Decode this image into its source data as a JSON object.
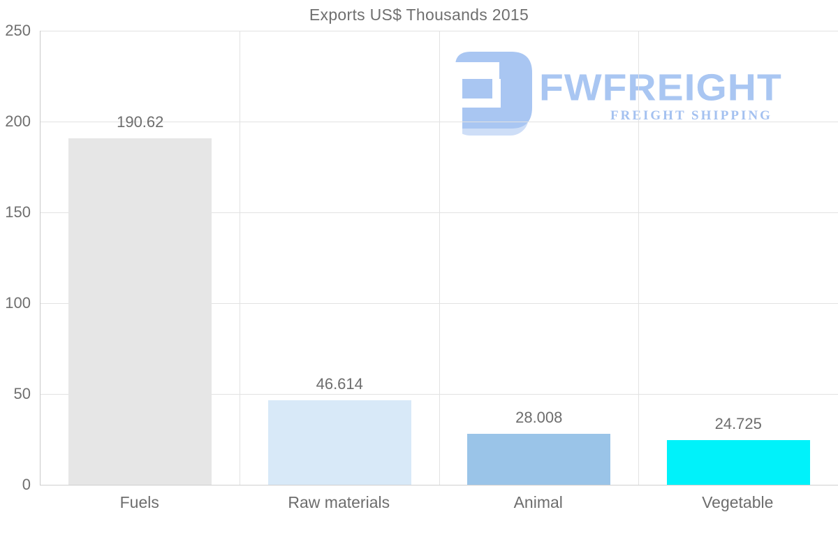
{
  "chart_data": {
    "type": "bar",
    "title": "Exports US$ Thousands 2015",
    "categories": [
      "Fuels",
      "Raw materials",
      "Animal",
      "Vegetable"
    ],
    "values": [
      190.62,
      46.614,
      28.008,
      24.725
    ],
    "value_labels": [
      "190.62",
      "46.614",
      "28.008",
      "24.725"
    ],
    "bar_colors": [
      "#e6e6e6",
      "#d8e9f8",
      "#9ac4e8",
      "#00f2fa"
    ],
    "ylim": [
      0,
      250
    ],
    "yticks": [
      0,
      50,
      100,
      150,
      200,
      250
    ],
    "xlabel": "",
    "ylabel": "",
    "grid": "horizontal 50-unit gridlines plus vertical category separators",
    "legend": "none"
  },
  "watermark": {
    "brand": "FWFREIGHT",
    "tagline": "FREIGHT SHIPPING",
    "color": "#a9c6f2"
  },
  "colors": {
    "background": "#ffffff",
    "grid": "#e2e2e2",
    "axis_line": "#c9c9c9",
    "text": "#6f6f6f"
  }
}
